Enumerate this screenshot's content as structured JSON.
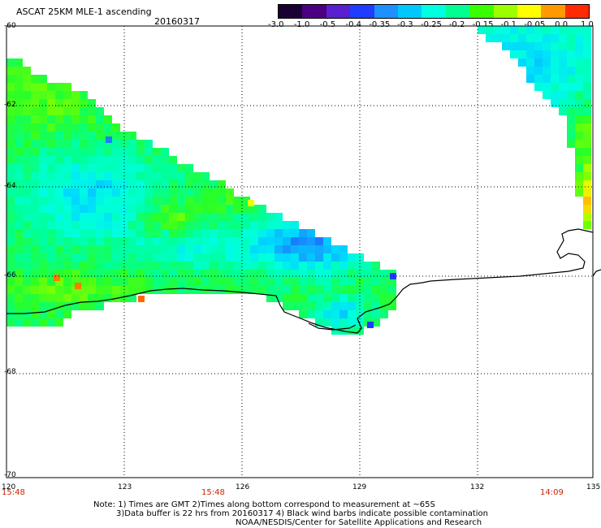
{
  "header": {
    "product": "ASCAT 25KM MLE-1 ascending",
    "date": "20160317"
  },
  "colorbar": {
    "labels": [
      "-3.0",
      "-1.0",
      "-0.5",
      "-0.4",
      "-0.35",
      "-0.3",
      "-0.25",
      "-0.2",
      "-0.15",
      "-0.1",
      "-0.05",
      "0.0",
      "1.0"
    ],
    "colors": [
      "#1a0033",
      "#4b0082",
      "#5a1fd0",
      "#1f3cff",
      "#1e90ff",
      "#00c8ff",
      "#00ffe0",
      "#00ff90",
      "#38ff00",
      "#9cff00",
      "#ffff00",
      "#ff9900",
      "#ff2a00"
    ]
  },
  "map": {
    "lon_ticks": [
      "120",
      "123",
      "126",
      "129",
      "132",
      "135"
    ],
    "lat_ticks": [
      "-60",
      "-62",
      "-64",
      "-66",
      "-68",
      "-70"
    ],
    "times": [
      "15:48",
      "15:48",
      "14:09"
    ]
  },
  "notes": {
    "line1": "Note: 1) Times are GMT 2)Times along bottom correspond to measurement at ~65S",
    "line2": "3)Data buffer is 22 hrs from 20160317 4) Black wind barbs indicate possible contamination",
    "line3": "NOAA/NESDIS/Center for Satellite Applications and Research"
  }
}
